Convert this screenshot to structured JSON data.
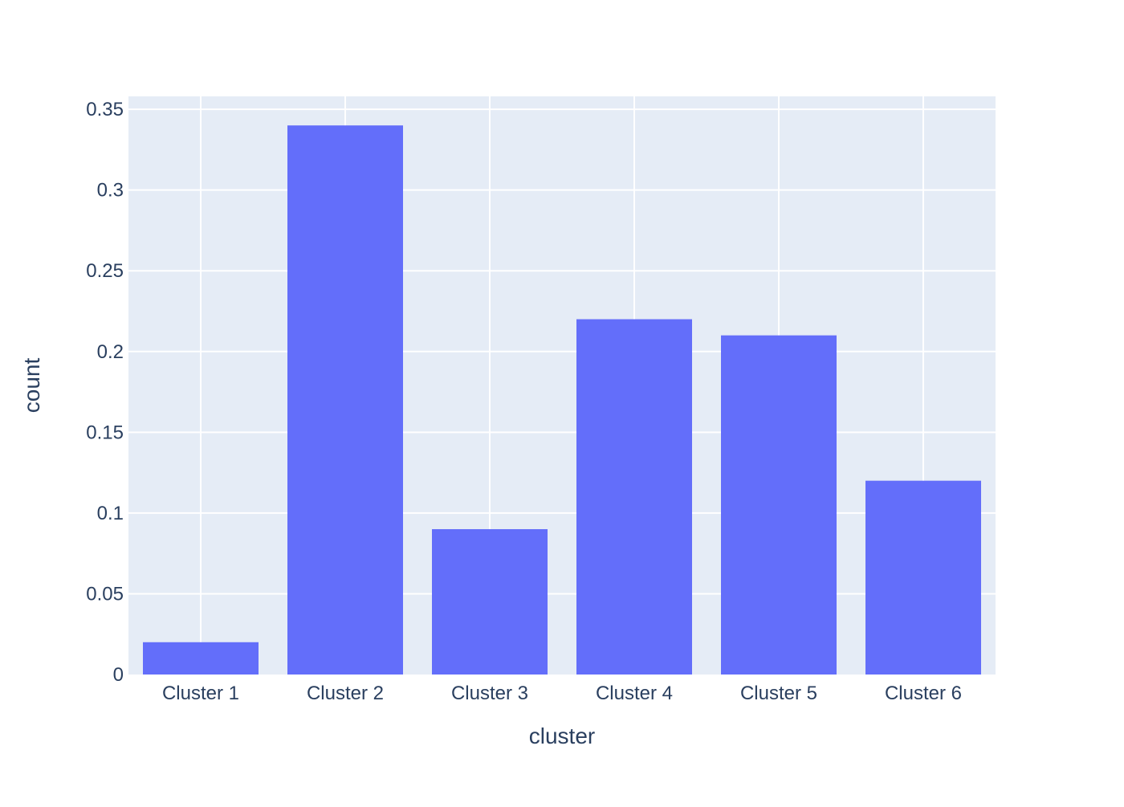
{
  "chart_data": {
    "type": "bar",
    "title": "",
    "xlabel": "cluster",
    "ylabel": "count",
    "categories": [
      "Cluster 1",
      "Cluster 2",
      "Cluster 3",
      "Cluster 4",
      "Cluster 5",
      "Cluster 6"
    ],
    "values": [
      0.02,
      0.34,
      0.09,
      0.22,
      0.21,
      0.12
    ],
    "ylim": [
      0,
      0.358
    ],
    "yticks": [
      0,
      0.05,
      0.1,
      0.15,
      0.2,
      0.25,
      0.3,
      0.35
    ],
    "ytick_labels": [
      "0",
      "0.05",
      "0.1",
      "0.15",
      "0.2",
      "0.25",
      "0.3",
      "0.35"
    ],
    "grid": true,
    "legend": "none",
    "colors": {
      "bar": "#636efa",
      "plot_background": "#e5ecf6",
      "grid": "#ffffff",
      "text": "#2a3f5f"
    }
  }
}
